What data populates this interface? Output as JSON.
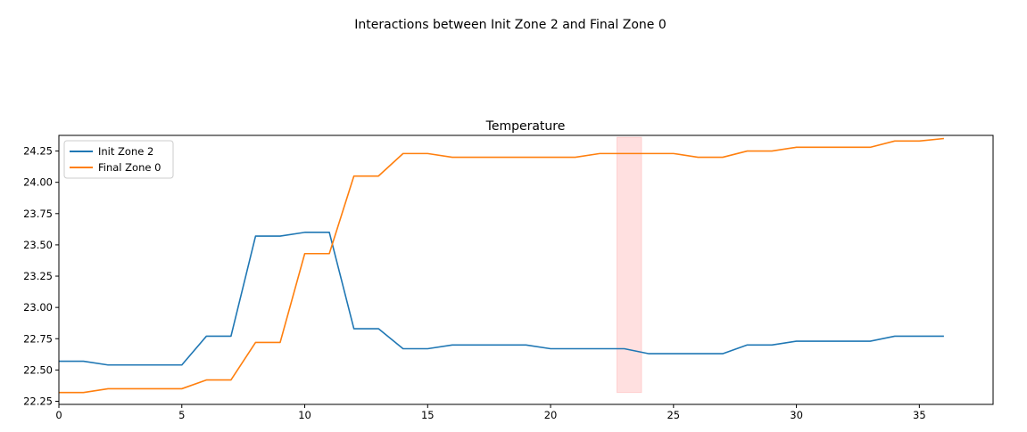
{
  "figure": {
    "suptitle": "Interactions between Init Zone 2 and  Final Zone 0"
  },
  "chart_data": {
    "type": "line",
    "title": "Temperature",
    "xlabel": "",
    "ylabel": "",
    "xlim": [
      0,
      38
    ],
    "ylim": [
      22.225,
      24.375
    ],
    "xticks": [
      0,
      5,
      10,
      15,
      20,
      25,
      30,
      35
    ],
    "xtick_labels": [
      "0",
      "5",
      "10",
      "15",
      "20",
      "25",
      "30",
      "35"
    ],
    "yticks": [
      22.25,
      22.5,
      22.75,
      23.0,
      23.25,
      23.5,
      23.75,
      24.0,
      24.25
    ],
    "ytick_labels": [
      "22.25",
      "22.50",
      "22.75",
      "23.00",
      "23.25",
      "23.50",
      "23.75",
      "24.00",
      "24.25"
    ],
    "grid": false,
    "legend": {
      "position": "top-left"
    },
    "x": [
      0,
      1,
      2,
      3,
      4,
      5,
      6,
      7,
      8,
      9,
      10,
      11,
      12,
      13,
      14,
      15,
      16,
      17,
      18,
      19,
      20,
      21,
      22,
      23,
      24,
      25,
      26,
      27,
      28,
      29,
      30,
      31,
      32,
      33,
      34,
      35,
      36
    ],
    "series": [
      {
        "name": "Init Zone 2",
        "color": "#1f77b4",
        "values": [
          22.57,
          22.57,
          22.54,
          22.54,
          22.54,
          22.54,
          22.77,
          22.77,
          23.57,
          23.57,
          23.6,
          23.6,
          22.83,
          22.83,
          22.67,
          22.67,
          22.7,
          22.7,
          22.7,
          22.7,
          22.67,
          22.67,
          22.67,
          22.67,
          22.63,
          22.63,
          22.63,
          22.63,
          22.7,
          22.7,
          22.73,
          22.73,
          22.73,
          22.73,
          22.77,
          22.77,
          22.77
        ]
      },
      {
        "name": "Final Zone 0",
        "color": "#ff7f0e",
        "values": [
          22.32,
          22.32,
          22.35,
          22.35,
          22.35,
          22.35,
          22.42,
          22.42,
          22.72,
          22.72,
          23.43,
          23.43,
          24.05,
          24.05,
          24.23,
          24.23,
          24.2,
          24.2,
          24.2,
          24.2,
          24.2,
          24.2,
          24.23,
          24.23,
          24.23,
          24.23,
          24.2,
          24.2,
          24.25,
          24.25,
          24.28,
          24.28,
          24.28,
          24.28,
          24.33,
          24.33,
          24.35
        ]
      }
    ],
    "highlight_span": {
      "x0": 22.7,
      "x1": 23.7,
      "y0": 22.32,
      "y1": 24.36,
      "color": "#ff9999"
    }
  }
}
